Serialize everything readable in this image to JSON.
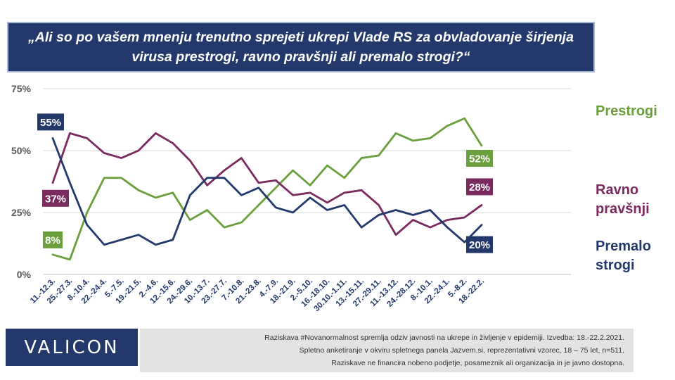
{
  "title": "„Ali so po vašem mnenju trenutno sprejeti ukrepi Vlade RS za obvladovanje širjenja virusa prestrogi, ravno pravšnji ali premalo strogi?“",
  "logo": "VALICON",
  "footnote": [
    "Raziskava #Novanormalnost spremlja odziv javnosti na ukrepe in življenje v epidemiji. Izvedba: 18.-22.2.2021.",
    "Spletno anketiranje v okviru spletnega panela Jazvem.si, reprezentativni vzorec, 18 – 75 let, n=511.",
    "Raziskave ne financira nobeno podjetje, posameznik ali organizacija in je javno dostopna."
  ],
  "legend": {
    "prestrogi": "Prestrogi",
    "ravno_line1": "Ravno",
    "ravno_line2": "pravšnji",
    "premalo_line1": "Premalo",
    "premalo_line2": "strogi"
  },
  "chart_data": {
    "type": "line",
    "categories": [
      "11.-12.3.",
      "25.-27.3.",
      "8.-10.4.",
      "22.-24.4.",
      "5.-7.5.",
      "19.-21.5.",
      "2.-4.6.",
      "12.-15.6.",
      "24.-29.6.",
      "10.-13.7.",
      "23.-27.7.",
      "7.-10.8.",
      "21.-23.8.",
      "4.-7.9.",
      "18.-21.9.",
      "2.-5.10.",
      "16.-18.10.",
      "30.10.-1.11.",
      "13.-15.11.",
      "27.-29.11.",
      "11.-13.12.",
      "24.-28.12.",
      "8.-10.1.",
      "22.-24.1.",
      "5.-8.2.",
      "18.-22.2."
    ],
    "yticks": [
      "0%",
      "25%",
      "50%",
      "75%"
    ],
    "ylim": [
      0,
      75
    ],
    "series": [
      {
        "name": "Prestrogi",
        "color": "#6b9e3c",
        "values": [
          8,
          6,
          25,
          39,
          39,
          34,
          31,
          33,
          22,
          26,
          19,
          21,
          28,
          35,
          42,
          36,
          44,
          39,
          47,
          48,
          57,
          54,
          55,
          60,
          63,
          52
        ],
        "labels": {
          "first": "8%",
          "last": "52%"
        }
      },
      {
        "name": "Ravno pravšnji",
        "color": "#7b2a5f",
        "values": [
          37,
          57,
          55,
          49,
          47,
          50,
          57,
          53,
          46,
          36,
          42,
          47,
          37,
          38,
          32,
          33,
          29,
          33,
          34,
          28,
          16,
          22,
          19,
          22,
          23,
          28
        ],
        "labels": {
          "first": "37%",
          "last": "28%"
        }
      },
      {
        "name": "Premalo strogi",
        "color": "#23396b",
        "values": [
          55,
          37,
          20,
          12,
          14,
          16,
          12,
          14,
          32,
          39,
          39,
          32,
          35,
          27,
          25,
          31,
          26,
          28,
          19,
          24,
          26,
          24,
          26,
          19,
          13,
          20
        ],
        "labels": {
          "first": "55%",
          "last": "20%"
        }
      }
    ]
  }
}
